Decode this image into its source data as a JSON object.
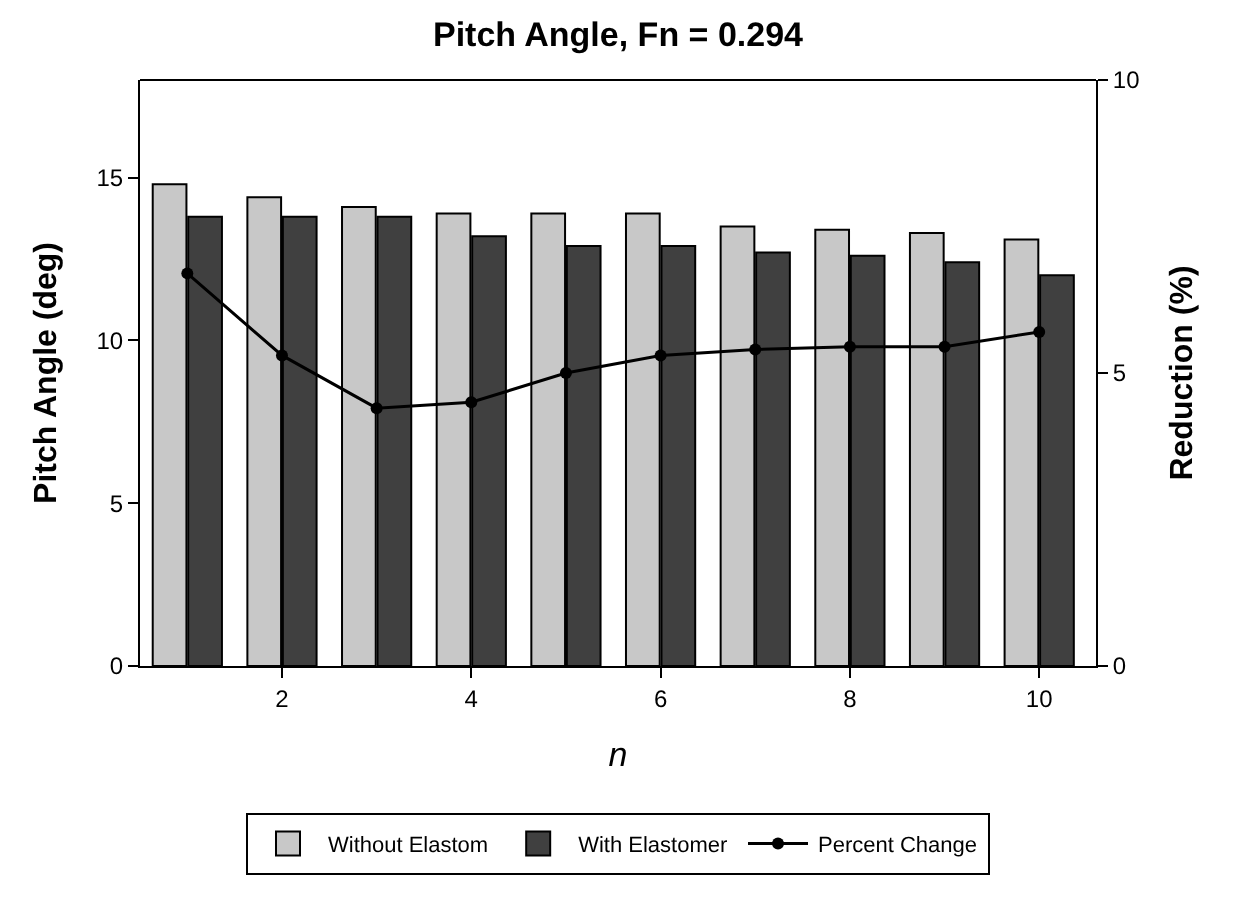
{
  "chart_data": {
    "type": "bar",
    "title": "Pitch Angle, Fn = 0.294",
    "xlabel": "n",
    "ylabel": "Pitch Angle (deg)",
    "y2label": "Reduction (%)",
    "x": [
      1,
      2,
      3,
      4,
      5,
      6,
      7,
      8,
      9,
      10
    ],
    "series": [
      {
        "name": "Without Elastom",
        "color": "#c8c8c8",
        "values": [
          14.8,
          14.4,
          14.1,
          13.9,
          13.9,
          13.9,
          13.5,
          13.4,
          13.3,
          13.1
        ]
      },
      {
        "name": "With Elastomer",
        "color": "#404040",
        "values": [
          13.8,
          13.8,
          13.8,
          13.2,
          12.9,
          12.9,
          12.7,
          12.6,
          12.4,
          12.0
        ]
      },
      {
        "name": "Percent Change",
        "type": "line",
        "axis": "y2",
        "color": "#000000",
        "marker": "circle",
        "line_style": "solid",
        "values": [
          6.7,
          5.3,
          4.4,
          4.5,
          5.0,
          5.3,
          5.4,
          5.45,
          5.45,
          5.7
        ]
      }
    ],
    "xlim": [
      0.5,
      10.6
    ],
    "xticks": [
      2,
      4,
      6,
      8,
      10
    ],
    "ylim": [
      0,
      18
    ],
    "yticks": [
      0,
      5,
      10,
      15
    ],
    "y2lim": [
      0,
      10
    ],
    "y2ticks": [
      0,
      5,
      10
    ],
    "legend": "bottom"
  }
}
